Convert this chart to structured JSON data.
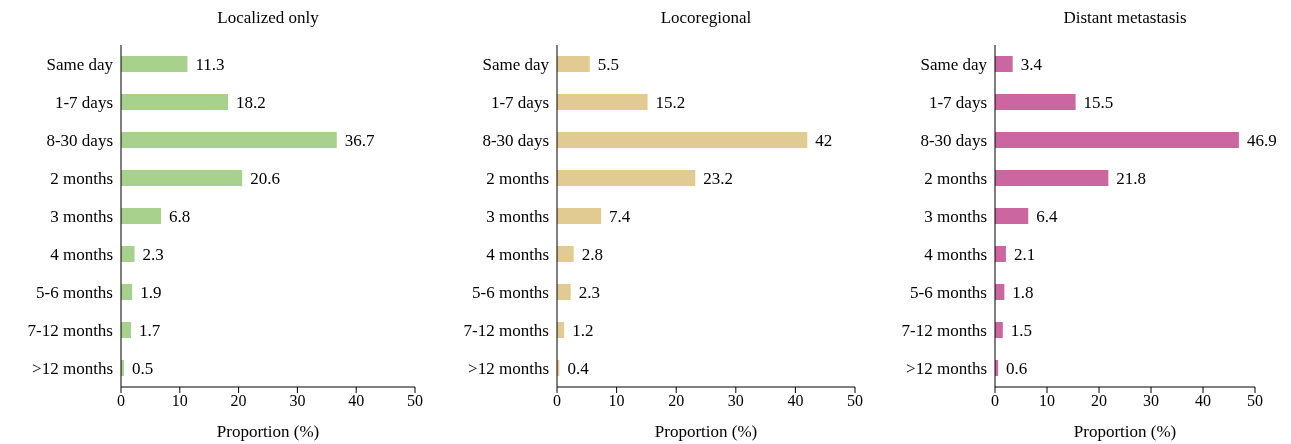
{
  "chart_data": [
    {
      "type": "bar",
      "orientation": "horizontal",
      "title": "Localized only",
      "xlabel": "Proportion (%)",
      "categories": [
        "Same day",
        "1-7 days",
        "8-30 days",
        "2 months",
        "3 months",
        "4 months",
        "5-6 months",
        "7-12 months",
        ">12 months"
      ],
      "values": [
        11.3,
        18.2,
        36.7,
        20.6,
        6.8,
        2.3,
        1.9,
        1.7,
        0.5
      ],
      "color": "#a9d18e",
      "xlim": [
        0,
        50
      ],
      "xticks": [
        0,
        10,
        20,
        30,
        40,
        50
      ],
      "data_labels": true
    },
    {
      "type": "bar",
      "orientation": "horizontal",
      "title": "Locoregional",
      "xlabel": "Proportion (%)",
      "categories": [
        "Same day",
        "1-7 days",
        "8-30 days",
        "2 months",
        "3 months",
        "4 months",
        "5-6 months",
        "7-12 months",
        ">12 months"
      ],
      "values": [
        5.5,
        15.2,
        42,
        23.2,
        7.4,
        2.8,
        2.3,
        1.2,
        0.4
      ],
      "color": "#e2cb92",
      "xlim": [
        0,
        50
      ],
      "xticks": [
        0,
        10,
        20,
        30,
        40,
        50
      ],
      "data_labels": true
    },
    {
      "type": "bar",
      "orientation": "horizontal",
      "title": "Distant metastasis",
      "xlabel": "Proportion (%)",
      "categories": [
        "Same day",
        "1-7 days",
        "8-30 days",
        "2 months",
        "3 months",
        "4 months",
        "5-6 months",
        "7-12 months",
        ">12 months"
      ],
      "values": [
        3.4,
        15.5,
        46.9,
        21.8,
        6.4,
        2.1,
        1.8,
        1.5,
        0.6
      ],
      "color": "#cc66a0",
      "xlim": [
        0,
        50
      ],
      "xticks": [
        0,
        10,
        20,
        30,
        40,
        50
      ],
      "data_labels": true
    }
  ]
}
